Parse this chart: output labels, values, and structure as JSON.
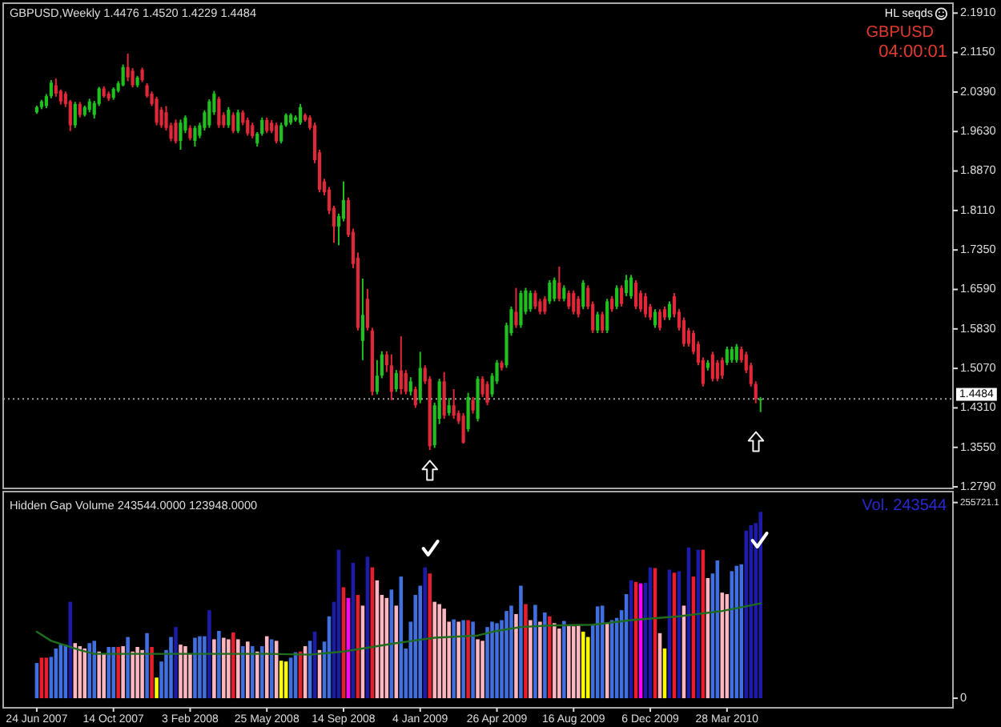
{
  "chart_data": [
    {
      "type": "candlestick",
      "title": "GBPUSD,Weekly 1.4476 1.4520 1.4229 1.4484",
      "x": [
        "2007-06-24",
        "2007-07-01",
        "2007-07-08",
        "2007-07-15",
        "2007-07-22",
        "2007-07-29",
        "2007-08-05",
        "2007-08-12",
        "2007-08-19",
        "2007-08-26",
        "2007-09-02",
        "2007-09-09",
        "2007-09-16",
        "2007-09-23",
        "2007-09-30",
        "2007-10-07",
        "2007-10-14",
        "2007-10-21",
        "2007-10-28",
        "2007-11-04",
        "2007-11-11",
        "2007-11-18",
        "2007-11-25",
        "2007-12-02",
        "2007-12-09",
        "2007-12-16",
        "2007-12-23",
        "2007-12-30",
        "2008-01-06",
        "2008-01-13",
        "2008-01-20",
        "2008-01-27",
        "2008-02-03",
        "2008-02-10",
        "2008-02-17",
        "2008-02-24",
        "2008-03-02",
        "2008-03-09",
        "2008-03-16",
        "2008-03-23",
        "2008-03-30",
        "2008-04-06",
        "2008-04-13",
        "2008-04-20",
        "2008-04-27",
        "2008-05-04",
        "2008-05-11",
        "2008-05-18",
        "2008-05-25",
        "2008-06-01",
        "2008-06-08",
        "2008-06-15",
        "2008-06-22",
        "2008-06-29",
        "2008-07-06",
        "2008-07-13",
        "2008-07-20",
        "2008-07-27",
        "2008-08-03",
        "2008-08-10",
        "2008-08-17",
        "2008-08-24",
        "2008-08-31",
        "2008-09-07",
        "2008-09-14",
        "2008-09-21",
        "2008-09-28",
        "2008-10-05",
        "2008-10-12",
        "2008-10-19",
        "2008-10-26",
        "2008-11-02",
        "2008-11-09",
        "2008-11-16",
        "2008-11-23",
        "2008-11-30",
        "2008-12-07",
        "2008-12-14",
        "2008-12-21",
        "2008-12-28",
        "2009-01-04",
        "2009-01-11",
        "2009-01-18",
        "2009-01-25",
        "2009-02-01",
        "2009-02-08",
        "2009-02-15",
        "2009-02-22",
        "2009-03-01",
        "2009-03-08",
        "2009-03-15",
        "2009-03-22",
        "2009-03-29",
        "2009-04-05",
        "2009-04-12",
        "2009-04-19",
        "2009-04-26",
        "2009-05-03",
        "2009-05-10",
        "2009-05-17",
        "2009-05-24",
        "2009-05-31",
        "2009-06-07",
        "2009-06-14",
        "2009-06-21",
        "2009-06-28",
        "2009-07-05",
        "2009-07-12",
        "2009-07-19",
        "2009-07-26",
        "2009-08-02",
        "2009-08-09",
        "2009-08-16",
        "2009-08-23",
        "2009-08-30",
        "2009-09-06",
        "2009-09-13",
        "2009-09-20",
        "2009-09-27",
        "2009-10-04",
        "2009-10-11",
        "2009-10-18",
        "2009-10-25",
        "2009-11-01",
        "2009-11-08",
        "2009-11-15",
        "2009-11-22",
        "2009-11-29",
        "2009-12-06",
        "2009-12-13",
        "2009-12-20",
        "2009-12-27",
        "2010-01-03",
        "2010-01-10",
        "2010-01-17",
        "2010-01-24",
        "2010-01-31",
        "2010-02-07",
        "2010-02-14",
        "2010-02-21",
        "2010-02-28",
        "2010-03-07",
        "2010-03-14",
        "2010-03-21",
        "2010-03-28",
        "2010-04-04",
        "2010-04-11",
        "2010-04-18",
        "2010-04-25",
        "2010-05-02",
        "2010-05-09",
        "2010-05-16"
      ],
      "ohlc": [
        [
          2.0,
          2.013,
          1.997,
          2.01
        ],
        [
          2.01,
          2.024,
          2.006,
          2.021
        ],
        [
          2.012,
          2.035,
          2.008,
          2.031
        ],
        [
          2.031,
          2.062,
          2.027,
          2.057
        ],
        [
          2.052,
          2.065,
          2.03,
          2.036
        ],
        [
          2.041,
          2.044,
          2.015,
          2.021
        ],
        [
          2.036,
          2.04,
          2.01,
          2.016
        ],
        [
          2.021,
          2.024,
          1.964,
          1.975
        ],
        [
          1.975,
          2.02,
          1.97,
          2.016
        ],
        [
          2.016,
          2.02,
          1.99,
          1.995
        ],
        [
          1.995,
          2.013,
          1.992,
          2.01
        ],
        [
          2.005,
          2.026,
          2.0,
          2.021
        ],
        [
          1.995,
          2.022,
          1.988,
          2.018
        ],
        [
          2.016,
          2.049,
          2.012,
          2.046
        ],
        [
          2.046,
          2.05,
          2.028,
          2.031
        ],
        [
          2.036,
          2.04,
          2.022,
          2.026
        ],
        [
          2.028,
          2.048,
          2.024,
          2.045
        ],
        [
          2.041,
          2.06,
          2.038,
          2.056
        ],
        [
          2.052,
          2.092,
          2.05,
          2.087
        ],
        [
          2.087,
          2.113,
          2.06,
          2.067
        ],
        [
          2.08,
          2.085,
          2.048,
          2.052
        ],
        [
          2.052,
          2.07,
          2.048,
          2.067
        ],
        [
          2.082,
          2.086,
          2.058,
          2.062
        ],
        [
          2.052,
          2.056,
          2.028,
          2.031
        ],
        [
          2.036,
          2.04,
          2.012,
          2.016
        ],
        [
          2.026,
          2.03,
          1.975,
          1.98
        ],
        [
          2.005,
          2.01,
          1.97,
          1.975
        ],
        [
          2.0,
          2.012,
          1.965,
          1.97
        ],
        [
          1.975,
          1.98,
          1.944,
          1.949
        ],
        [
          1.98,
          1.986,
          1.94,
          1.944
        ],
        [
          1.945,
          1.986,
          1.928,
          1.98
        ],
        [
          1.965,
          1.994,
          1.96,
          1.99
        ],
        [
          1.97,
          1.975,
          1.946,
          1.95
        ],
        [
          1.945,
          1.974,
          1.934,
          1.97
        ],
        [
          1.955,
          1.98,
          1.95,
          1.975
        ],
        [
          1.97,
          2.004,
          1.965,
          2.0
        ],
        [
          1.975,
          2.025,
          1.97,
          2.021
        ],
        [
          2.0,
          2.041,
          1.995,
          2.036
        ],
        [
          2.026,
          2.03,
          1.97,
          1.975
        ],
        [
          1.995,
          2.0,
          1.97,
          1.975
        ],
        [
          1.975,
          2.01,
          1.97,
          2.005
        ],
        [
          1.995,
          2.0,
          1.96,
          1.964
        ],
        [
          1.964,
          2.005,
          1.96,
          2.0
        ],
        [
          2.0,
          2.004,
          1.975,
          1.98
        ],
        [
          1.985,
          1.99,
          1.955,
          1.959
        ],
        [
          1.975,
          1.98,
          1.95,
          1.954
        ],
        [
          1.94,
          1.962,
          1.934,
          1.959
        ],
        [
          1.959,
          1.99,
          1.955,
          1.985
        ],
        [
          1.985,
          1.99,
          1.96,
          1.964
        ],
        [
          1.98,
          1.985,
          1.96,
          1.964
        ],
        [
          1.975,
          1.98,
          1.94,
          1.944
        ],
        [
          1.944,
          1.98,
          1.94,
          1.975
        ],
        [
          1.975,
          1.998,
          1.972,
          1.995
        ],
        [
          1.98,
          1.998,
          1.976,
          1.995
        ],
        [
          1.985,
          1.994,
          1.982,
          1.99
        ],
        [
          1.98,
          2.016,
          1.976,
          2.01
        ],
        [
          1.995,
          1.998,
          1.982,
          1.985
        ],
        [
          1.99,
          1.994,
          1.966,
          1.97
        ],
        [
          1.975,
          1.98,
          1.902,
          1.908
        ],
        [
          1.923,
          1.928,
          1.846,
          1.851
        ],
        [
          1.867,
          1.872,
          1.84,
          1.846
        ],
        [
          1.851,
          1.856,
          1.804,
          1.81
        ],
        [
          1.816,
          1.82,
          1.749,
          1.78
        ],
        [
          1.78,
          1.805,
          1.744,
          1.8
        ],
        [
          1.795,
          1.867,
          1.79,
          1.831
        ],
        [
          1.831,
          1.836,
          1.76,
          1.764
        ],
        [
          1.77,
          1.776,
          1.7,
          1.708
        ],
        [
          1.72,
          1.73,
          1.58,
          1.585
        ],
        [
          1.56,
          1.68,
          1.523,
          1.61
        ],
        [
          1.641,
          1.66,
          1.58,
          1.585
        ],
        [
          1.58,
          1.585,
          1.455,
          1.462
        ],
        [
          1.462,
          1.523,
          1.457,
          1.493
        ],
        [
          1.493,
          1.54,
          1.488,
          1.534
        ],
        [
          1.534,
          1.54,
          1.5,
          1.513
        ],
        [
          1.513,
          1.534,
          1.446,
          1.462
        ],
        [
          1.467,
          1.504,
          1.462,
          1.498
        ],
        [
          1.503,
          1.569,
          1.457,
          1.467
        ],
        [
          1.498,
          1.504,
          1.457,
          1.462
        ],
        [
          1.462,
          1.49,
          1.455,
          1.482
        ],
        [
          1.467,
          1.472,
          1.431,
          1.436
        ],
        [
          1.446,
          1.539,
          1.44,
          1.508
        ],
        [
          1.508,
          1.513,
          1.477,
          1.482
        ],
        [
          1.487,
          1.492,
          1.35,
          1.357
        ],
        [
          1.359,
          1.441,
          1.354,
          1.436
        ],
        [
          1.41,
          1.487,
          1.4,
          1.482
        ],
        [
          1.482,
          1.5,
          1.41,
          1.416
        ],
        [
          1.421,
          1.45,
          1.416,
          1.436
        ],
        [
          1.436,
          1.467,
          1.41,
          1.416
        ],
        [
          1.421,
          1.426,
          1.4,
          1.405
        ],
        [
          1.416,
          1.421,
          1.362,
          1.364
        ],
        [
          1.39,
          1.46,
          1.385,
          1.452
        ],
        [
          1.446,
          1.452,
          1.42,
          1.426
        ],
        [
          1.41,
          1.492,
          1.405,
          1.487
        ],
        [
          1.487,
          1.492,
          1.452,
          1.457
        ],
        [
          1.477,
          1.482,
          1.436,
          1.441
        ],
        [
          1.457,
          1.498,
          1.452,
          1.493
        ],
        [
          1.482,
          1.523,
          1.477,
          1.518
        ],
        [
          1.518,
          1.522,
          1.503,
          1.508
        ],
        [
          1.513,
          1.595,
          1.508,
          1.59
        ],
        [
          1.575,
          1.626,
          1.57,
          1.621
        ],
        [
          1.616,
          1.662,
          1.585,
          1.59
        ],
        [
          1.59,
          1.657,
          1.585,
          1.652
        ],
        [
          1.616,
          1.662,
          1.611,
          1.657
        ],
        [
          1.621,
          1.657,
          1.616,
          1.652
        ],
        [
          1.652,
          1.657,
          1.621,
          1.626
        ],
        [
          1.636,
          1.641,
          1.611,
          1.616
        ],
        [
          1.641,
          1.646,
          1.611,
          1.616
        ],
        [
          1.636,
          1.677,
          1.631,
          1.672
        ],
        [
          1.641,
          1.682,
          1.636,
          1.677
        ],
        [
          1.672,
          1.703,
          1.636,
          1.641
        ],
        [
          1.641,
          1.667,
          1.636,
          1.662
        ],
        [
          1.652,
          1.657,
          1.621,
          1.626
        ],
        [
          1.652,
          1.657,
          1.611,
          1.616
        ],
        [
          1.641,
          1.646,
          1.605,
          1.611
        ],
        [
          1.626,
          1.677,
          1.621,
          1.672
        ],
        [
          1.662,
          1.667,
          1.621,
          1.626
        ],
        [
          1.631,
          1.636,
          1.575,
          1.58
        ],
        [
          1.58,
          1.616,
          1.575,
          1.611
        ],
        [
          1.611,
          1.616,
          1.575,
          1.58
        ],
        [
          1.58,
          1.641,
          1.575,
          1.636
        ],
        [
          1.641,
          1.646,
          1.616,
          1.621
        ],
        [
          1.626,
          1.667,
          1.621,
          1.662
        ],
        [
          1.662,
          1.667,
          1.626,
          1.631
        ],
        [
          1.652,
          1.687,
          1.646,
          1.677
        ],
        [
          1.646,
          1.687,
          1.641,
          1.682
        ],
        [
          1.672,
          1.677,
          1.621,
          1.626
        ],
        [
          1.652,
          1.657,
          1.616,
          1.621
        ],
        [
          1.646,
          1.652,
          1.605,
          1.611
        ],
        [
          1.626,
          1.631,
          1.6,
          1.605
        ],
        [
          1.59,
          1.621,
          1.585,
          1.616
        ],
        [
          1.616,
          1.621,
          1.58,
          1.585
        ],
        [
          1.621,
          1.626,
          1.6,
          1.605
        ],
        [
          1.605,
          1.636,
          1.6,
          1.631
        ],
        [
          1.646,
          1.652,
          1.605,
          1.611
        ],
        [
          1.616,
          1.621,
          1.58,
          1.585
        ],
        [
          1.6,
          1.605,
          1.549,
          1.554
        ],
        [
          1.58,
          1.585,
          1.549,
          1.554
        ],
        [
          1.575,
          1.58,
          1.534,
          1.539
        ],
        [
          1.554,
          1.559,
          1.513,
          1.518
        ],
        [
          1.523,
          1.528,
          1.472,
          1.477
        ],
        [
          1.508,
          1.523,
          1.503,
          1.518
        ],
        [
          1.534,
          1.539,
          1.482,
          1.487
        ],
        [
          1.518,
          1.523,
          1.482,
          1.487
        ],
        [
          1.523,
          1.528,
          1.487,
          1.493
        ],
        [
          1.518,
          1.549,
          1.513,
          1.544
        ],
        [
          1.523,
          1.549,
          1.518,
          1.544
        ],
        [
          1.523,
          1.554,
          1.518,
          1.549
        ],
        [
          1.544,
          1.549,
          1.518,
          1.523
        ],
        [
          1.534,
          1.539,
          1.498,
          1.503
        ],
        [
          1.513,
          1.518,
          1.472,
          1.477
        ],
        [
          1.477,
          1.482,
          1.44,
          1.448
        ],
        [
          1.4476,
          1.452,
          1.4229,
          1.4484
        ]
      ],
      "colors": [
        "#20c020",
        "#20c020",
        "#20c020",
        "#20c020",
        "#e02838",
        "#e02838",
        "#e02838",
        "#e02838",
        "#20c020",
        "#e02838",
        "#20c020",
        "#20c020",
        "#20c020",
        "#20c020",
        "#e02838",
        "#e02838",
        "#20c020",
        "#20c020",
        "#20c020",
        "#e02838",
        "#e02838",
        "#20c020",
        "#e02838",
        "#e02838",
        "#e02838",
        "#e02838",
        "#e02838",
        "#e02838",
        "#e02838",
        "#e02838",
        "#20c020",
        "#20c020",
        "#e02838",
        "#20c020",
        "#20c020",
        "#20c020",
        "#20c020",
        "#20c020",
        "#e02838",
        "#e02838",
        "#20c020",
        "#e02838",
        "#20c020",
        "#e02838",
        "#e02838",
        "#e02838",
        "#20c020",
        "#20c020",
        "#e02838",
        "#e02838",
        "#e02838",
        "#20c020",
        "#20c020",
        "#20c020",
        "#20c020",
        "#20c020",
        "#e02838",
        "#e02838",
        "#e02838",
        "#e02838",
        "#e02838",
        "#e02838",
        "#e02838",
        "#20c020",
        "#20c020",
        "#e02838",
        "#e02838",
        "#e02838",
        "#20c020",
        "#e02838",
        "#e02838",
        "#20c020",
        "#20c020",
        "#e02838",
        "#e02838",
        "#20c020",
        "#e02838",
        "#e02838",
        "#20c020",
        "#e02838",
        "#20c020",
        "#e02838",
        "#e02838",
        "#20c020",
        "#20c020",
        "#e02838",
        "#20c020",
        "#e02838",
        "#e02838",
        "#e02838",
        "#20c020",
        "#e02838",
        "#20c020",
        "#e02838",
        "#e02838",
        "#20c020",
        "#20c020",
        "#e02838",
        "#20c020",
        "#20c020",
        "#e02838",
        "#20c020",
        "#20c020",
        "#20c020",
        "#e02838",
        "#e02838",
        "#e02838",
        "#20c020",
        "#20c020",
        "#e02838",
        "#20c020",
        "#e02838",
        "#e02838",
        "#e02838",
        "#20c020",
        "#e02838",
        "#e02838",
        "#20c020",
        "#e02838",
        "#20c020",
        "#e02838",
        "#20c020",
        "#e02838",
        "#20c020",
        "#20c020",
        "#e02838",
        "#e02838",
        "#e02838",
        "#e02838",
        "#20c020",
        "#e02838",
        "#e02838",
        "#20c020",
        "#e02838",
        "#e02838",
        "#e02838",
        "#e02838",
        "#e02838",
        "#e02838",
        "#e02838",
        "#20c020",
        "#e02838",
        "#e02838",
        "#e02838",
        "#20c020",
        "#20c020",
        "#20c020",
        "#e02838",
        "#e02838",
        "#e02838",
        "#e02838",
        "#20c020"
      ],
      "xlim": [
        "2007-05-06",
        "2011-02-21"
      ],
      "ylim": [
        1.276,
        2.21
      ],
      "yticks": [
        {
          "value": 2.191,
          "label": "2.1910"
        },
        {
          "value": 2.115,
          "label": "2.1150"
        },
        {
          "value": 2.039,
          "label": "2.0390"
        },
        {
          "value": 1.963,
          "label": "1.9630"
        },
        {
          "value": 1.887,
          "label": "1.8870"
        },
        {
          "value": 1.811,
          "label": "1.8110"
        },
        {
          "value": 1.735,
          "label": "1.7350"
        },
        {
          "value": 1.659,
          "label": "1.6590"
        },
        {
          "value": 1.583,
          "label": "1.5830"
        },
        {
          "value": 1.507,
          "label": "1.5070"
        },
        {
          "value": 1.431,
          "label": "1.4310"
        },
        {
          "value": 1.355,
          "label": "1.3550"
        },
        {
          "value": 1.279,
          "label": "1.2790"
        }
      ],
      "tick_labels": "y",
      "ref_lines": [
        {
          "axis": "y",
          "value": 1.4484,
          "label": "1.4484",
          "color": "#a0a0a0",
          "line_style": "dotted"
        }
      ],
      "annotations": [
        "HL seqds",
        "GBPUSD",
        "04:00:01"
      ]
    },
    {
      "type": "bar",
      "title": "Hidden Gap Volume 243544.0000 123948.0000",
      "x": [
        "2007-06-24",
        "2007-07-01",
        "2007-07-08",
        "2007-07-15",
        "2007-07-22",
        "2007-07-29",
        "2007-08-05",
        "2007-08-12",
        "2007-08-19",
        "2007-08-26",
        "2007-09-02",
        "2007-09-09",
        "2007-09-16",
        "2007-09-23",
        "2007-09-30",
        "2007-10-07",
        "2007-10-14",
        "2007-10-21",
        "2007-10-28",
        "2007-11-04",
        "2007-11-11",
        "2007-11-18",
        "2007-11-25",
        "2007-12-02",
        "2007-12-09",
        "2007-12-16",
        "2007-12-23",
        "2007-12-30",
        "2008-01-06",
        "2008-01-13",
        "2008-01-20",
        "2008-01-27",
        "2008-02-03",
        "2008-02-10",
        "2008-02-17",
        "2008-02-24",
        "2008-03-02",
        "2008-03-09",
        "2008-03-16",
        "2008-03-23",
        "2008-03-30",
        "2008-04-06",
        "2008-04-13",
        "2008-04-20",
        "2008-04-27",
        "2008-05-04",
        "2008-05-11",
        "2008-05-18",
        "2008-05-25",
        "2008-06-01",
        "2008-06-08",
        "2008-06-15",
        "2008-06-22",
        "2008-06-29",
        "2008-07-06",
        "2008-07-13",
        "2008-07-20",
        "2008-07-27",
        "2008-08-03",
        "2008-08-10",
        "2008-08-17",
        "2008-08-24",
        "2008-08-31",
        "2008-09-07",
        "2008-09-14",
        "2008-09-21",
        "2008-09-28",
        "2008-10-05",
        "2008-10-12",
        "2008-10-19",
        "2008-10-26",
        "2008-11-02",
        "2008-11-09",
        "2008-11-16",
        "2008-11-23",
        "2008-11-30",
        "2008-12-07",
        "2008-12-14",
        "2008-12-21",
        "2008-12-28",
        "2009-01-04",
        "2009-01-11",
        "2009-01-18",
        "2009-01-25",
        "2009-02-01",
        "2009-02-08",
        "2009-02-15",
        "2009-02-22",
        "2009-03-01",
        "2009-03-08",
        "2009-03-15",
        "2009-03-22",
        "2009-03-29",
        "2009-04-05",
        "2009-04-12",
        "2009-04-19",
        "2009-04-26",
        "2009-05-03",
        "2009-05-10",
        "2009-05-17",
        "2009-05-24",
        "2009-05-31",
        "2009-06-07",
        "2009-06-14",
        "2009-06-21",
        "2009-06-28",
        "2009-07-05",
        "2009-07-12",
        "2009-07-19",
        "2009-07-26",
        "2009-08-02",
        "2009-08-09",
        "2009-08-16",
        "2009-08-23",
        "2009-08-30",
        "2009-09-06",
        "2009-09-13",
        "2009-09-20",
        "2009-09-27",
        "2009-10-04",
        "2009-10-11",
        "2009-10-18",
        "2009-10-25",
        "2009-11-01",
        "2009-11-08",
        "2009-11-15",
        "2009-11-22",
        "2009-11-29",
        "2009-12-06",
        "2009-12-13",
        "2009-12-20",
        "2009-12-27",
        "2010-01-03",
        "2010-01-10",
        "2010-01-17",
        "2010-01-24",
        "2010-01-31",
        "2010-02-07",
        "2010-02-14",
        "2010-02-21",
        "2010-02-28",
        "2010-03-07",
        "2010-03-14",
        "2010-03-21",
        "2010-03-28",
        "2010-04-04",
        "2010-04-11",
        "2010-04-18",
        "2010-04-25",
        "2010-05-02",
        "2010-05-09",
        "2010-05-16"
      ],
      "series": [
        {
          "values": [
            46000,
            53000,
            53000,
            54000,
            65000,
            70000,
            70000,
            126000,
            72000,
            68000,
            65000,
            72000,
            75000,
            61000,
            58000,
            67000,
            67000,
            67000,
            68000,
            80000,
            61000,
            67000,
            63000,
            85000,
            67000,
            27000,
            48000,
            63000,
            80000,
            93000,
            70000,
            68000,
            58000,
            79000,
            81000,
            81000,
            115000,
            77000,
            88000,
            79000,
            77000,
            86000,
            77000,
            68000,
            74000,
            68000,
            61000,
            68000,
            81000,
            77000,
            75000,
            49000,
            48000,
            53000,
            60000,
            61000,
            68000,
            75000,
            87000,
            63000,
            74000,
            107000,
            126000,
            194000,
            145000,
            131000,
            177000,
            135000,
            121000,
            185000,
            171000,
            154000,
            135000,
            131000,
            142000,
            121000,
            159000,
            65000,
            100000,
            135000,
            147000,
            171000,
            163000,
            126000,
            123000,
            117000,
            100000,
            103000,
            100000,
            102000,
            102000,
            100000,
            77000,
            75000,
            93000,
            100000,
            98000,
            102000,
            114000,
            121000,
            110000,
            147000,
            123000,
            102000,
            122000,
            100000,
            112000,
            107000,
            98000,
            91000,
            101000,
            95000,
            94000,
            95000,
            87000,
            80000,
            96000,
            120000,
            121000,
            98000,
            102000,
            105000,
            115000,
            136000,
            154000,
            152000,
            150000,
            151000,
            171000,
            170000,
            85000,
            65000,
            168000,
            164000,
            166000,
            121000,
            197000,
            159000,
            194000,
            194000,
            157000,
            163000,
            180000,
            138000,
            136000,
            166000,
            173000,
            175000,
            219000,
            226000,
            229000,
            243544
          ],
          "colors": [
            "#4070e0",
            "#e81e2c",
            "#e81e2c",
            "#4070e0",
            "#4070e0",
            "#4070e0",
            "#4070e0",
            "#1c1ca8",
            "#ffb6c1",
            "#ffb6c1",
            "#ffb6c1",
            "#4070e0",
            "#4070e0",
            "#ffb6c1",
            "#ffb6c1",
            "#4070e0",
            "#4070e0",
            "#e81e2c",
            "#ffb6c1",
            "#4070e0",
            "#ffb6c1",
            "#ffb6c1",
            "#ffb6c1",
            "#4070e0",
            "#e81e2c",
            "#ffff00",
            "#4070e0",
            "#4070e0",
            "#4070e0",
            "#1c1ca8",
            "#ffb6c1",
            "#ffb6c1",
            "#ffb6c1",
            "#4070e0",
            "#4070e0",
            "#4070e0",
            "#1c1ca8",
            "#ffb6c1",
            "#4070e0",
            "#ffb6c1",
            "#ffb6c1",
            "#e81e2c",
            "#ffb6c1",
            "#4070e0",
            "#ffb6c1",
            "#4070e0",
            "#ffb6c1",
            "#4070e0",
            "#ffb6c1",
            "#4070e0",
            "#ffb6c1",
            "#ffff00",
            "#ffff00",
            "#4070e0",
            "#4070e0",
            "#e81e2c",
            "#ffb6c1",
            "#4070e0",
            "#1c1ca8",
            "#ffb6c1",
            "#4070e0",
            "#4070e0",
            "#1c1ca8",
            "#1c1ca8",
            "#e81e2c",
            "#ff00ff",
            "#1c1ca8",
            "#e81e2c",
            "#ffb6c1",
            "#1c1ca8",
            "#e81e2c",
            "#ffb6c1",
            "#ffb6c1",
            "#ffb6c1",
            "#4070e0",
            "#ffb6c1",
            "#4070e0",
            "#4070e0",
            "#4070e0",
            "#4070e0",
            "#4070e0",
            "#1c1ca8",
            "#e81e2c",
            "#ffb6c1",
            "#ffb6c1",
            "#ffb6c1",
            "#ffb6c1",
            "#4070e0",
            "#ffb6c1",
            "#4070e0",
            "#e81e2c",
            "#4070e0",
            "#ffb6c1",
            "#ffb6c1",
            "#4070e0",
            "#4070e0",
            "#4070e0",
            "#4070e0",
            "#4070e0",
            "#4070e0",
            "#ffb6c1",
            "#4070e0",
            "#e81e2c",
            "#ffb6c1",
            "#4070e0",
            "#ffb6c1",
            "#4070e0",
            "#e81e2c",
            "#ffb6c1",
            "#ffb6c1",
            "#4070e0",
            "#ffb6c1",
            "#ffb6c1",
            "#ffb6c1",
            "#ffff00",
            "#ffff00",
            "#4070e0",
            "#4070e0",
            "#4070e0",
            "#ffb6c1",
            "#4070e0",
            "#4070e0",
            "#4070e0",
            "#4070e0",
            "#1c1ca8",
            "#e81e2c",
            "#ff00ff",
            "#1c1ca8",
            "#1c1ca8",
            "#e81e2c",
            "#ffb6c1",
            "#ffff00",
            "#1c1ca8",
            "#e81e2c",
            "#1c1ca8",
            "#ffb6c1",
            "#1c1ca8",
            "#e81e2c",
            "#1c1ca8",
            "#e81e2c",
            "#ffb6c1",
            "#4070e0",
            "#4070e0",
            "#ffb6c1",
            "#ffb6c1",
            "#4070e0",
            "#4070e0",
            "#4070e0",
            "#1c1ca8",
            "#1c1ca8",
            "#1c1ca8",
            "#1c1ca8"
          ]
        },
        {
          "type": "line",
          "color": "#1f6e1f",
          "x": [
            "2007-06-24",
            "2007-07-15",
            "2007-08-26",
            "2007-09-16",
            "2008-01-27",
            "2008-05-25",
            "2008-07-27",
            "2008-09-14",
            "2008-11-30",
            "2009-01-25",
            "2009-03-29",
            "2009-04-26",
            "2009-05-31",
            "2009-07-12",
            "2009-09-13",
            "2009-11-08",
            "2010-01-17",
            "2010-03-21",
            "2010-05-16"
          ],
          "values": [
            87000,
            75000,
            63000,
            58000,
            58000,
            58000,
            57000,
            61000,
            72000,
            79000,
            82000,
            88000,
            93000,
            95000,
            96000,
            102000,
            107000,
            114000,
            123948
          ]
        }
      ],
      "xlim": [
        "2007-05-06",
        "2011-02-21"
      ],
      "xticks": [
        {
          "value": "2007-06-24",
          "label": "24 Jun 2007"
        },
        {
          "value": "2007-10-14",
          "label": "14 Oct 2007"
        },
        {
          "value": "2008-02-03",
          "label": "3 Feb 2008"
        },
        {
          "value": "2008-05-25",
          "label": "25 May 2008"
        },
        {
          "value": "2008-09-14",
          "label": "14 Sep 2008"
        },
        {
          "value": "2009-01-04",
          "label": "4 Jan 2009"
        },
        {
          "value": "2009-04-26",
          "label": "26 Apr 2009"
        },
        {
          "value": "2009-08-16",
          "label": "16 Aug 2009"
        },
        {
          "value": "2009-12-06",
          "label": "6 Dec 2009"
        },
        {
          "value": "2010-03-28",
          "label": "28 Mar 2010"
        }
      ],
      "ylim": [
        -12500,
        270000
      ],
      "yticks": [
        0,
        255721.1
      ],
      "annotations": [
        "Vol. 243544"
      ]
    }
  ]
}
